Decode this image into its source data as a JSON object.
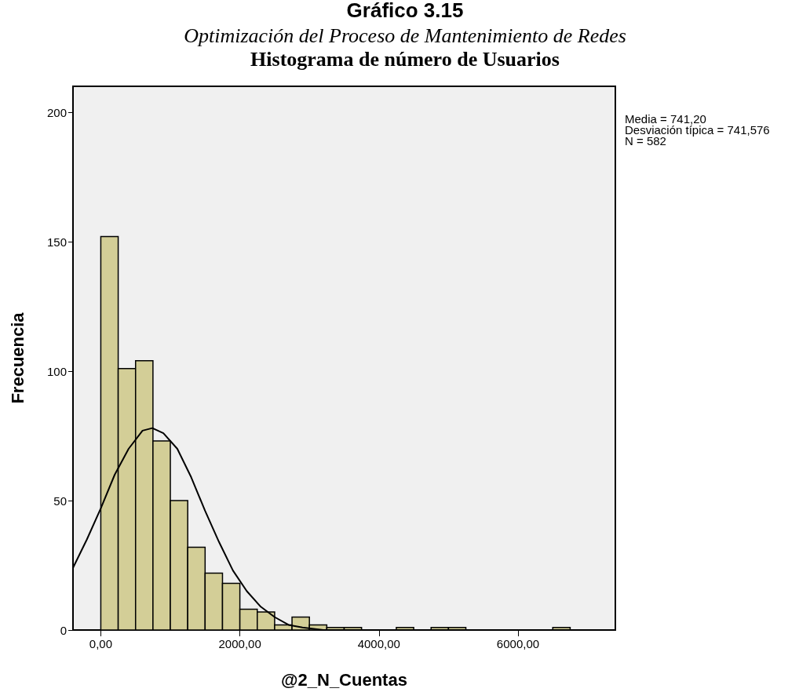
{
  "chart_data": {
    "type": "histogram",
    "title": "Gráfico 3.15",
    "subtitle": "Optimización del Proceso de Mantenimiento de Redes",
    "annotations": [
      "Histograma de número de Usuarios",
      "Media = 741,20",
      "Desviación típica = 741,576",
      "N = 582"
    ],
    "xlabel": "@2_N_Cuentas",
    "ylabel": "Frecuencia",
    "bins": [
      0,
      250,
      500,
      750,
      1000,
      1250,
      1500,
      1750,
      2000,
      2250,
      2500,
      2750,
      3000,
      3250,
      3500,
      3750,
      4000,
      4250,
      4500,
      4750,
      5000,
      5250,
      5500,
      5750,
      6000,
      6250,
      6500,
      6750
    ],
    "values": [
      152,
      101,
      104,
      73,
      50,
      32,
      22,
      18,
      8,
      7,
      2,
      5,
      2,
      1,
      1,
      0,
      0,
      1,
      0,
      1,
      1,
      0,
      0,
      0,
      0,
      0,
      1
    ],
    "color": "#d3ce97",
    "series": [
      {
        "type": "line",
        "color": "#000000",
        "x": [
          -400,
          -200,
          0,
          200,
          400,
          600,
          741,
          900,
          1100,
          1300,
          1500,
          1700,
          1900,
          2100,
          2300,
          2500,
          2700,
          2900,
          3200,
          3600,
          4500,
          7400
        ],
        "values": [
          24,
          35,
          47,
          60,
          70,
          77,
          78,
          76,
          70,
          59,
          46,
          34,
          23,
          15,
          9,
          5,
          2,
          1,
          0,
          0,
          0,
          0
        ]
      }
    ],
    "marker": "none",
    "line_style": "solid",
    "xlim": [
      -400,
      7400
    ],
    "xticks": [
      {
        "value": 0,
        "label": "0,00"
      },
      {
        "value": 2000,
        "label": "2000,00"
      },
      {
        "value": 4000,
        "label": "4000,00"
      },
      {
        "value": 6000,
        "label": "6000,00"
      }
    ],
    "ylim": [
      0,
      210
    ],
    "yticks": [
      0,
      50,
      100,
      150,
      200
    ],
    "grid": false
  }
}
